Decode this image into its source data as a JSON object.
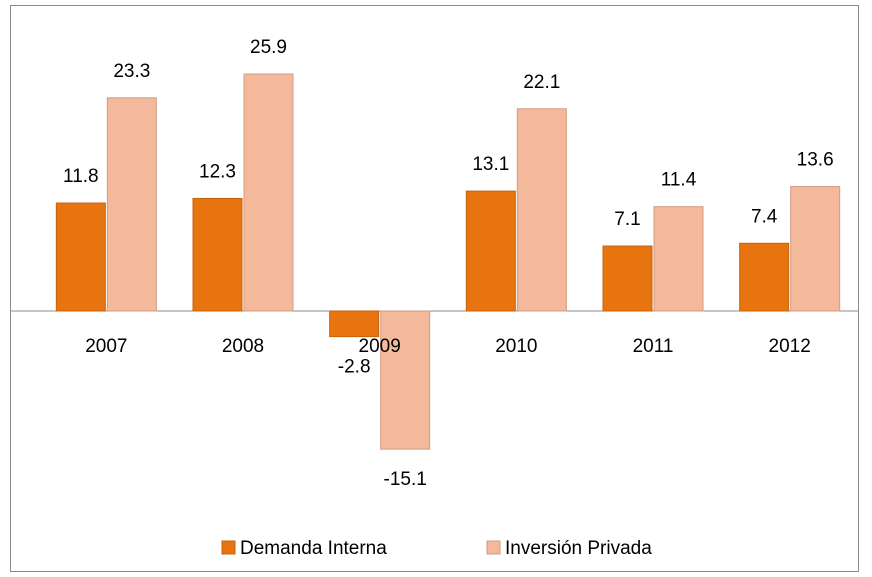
{
  "chart_data": {
    "type": "bar",
    "categories": [
      "2007",
      "2008",
      "2009",
      "2010",
      "2011",
      "2012"
    ],
    "series": [
      {
        "name": "Demanda Interna",
        "color": "#e8740f",
        "values": [
          11.8,
          12.3,
          -2.8,
          13.1,
          7.1,
          7.4
        ]
      },
      {
        "name": "Inversión Privada",
        "color": "#f4b99b",
        "values": [
          23.3,
          25.9,
          -15.1,
          22.1,
          11.4,
          13.6
        ]
      }
    ],
    "legend": "bottom"
  }
}
